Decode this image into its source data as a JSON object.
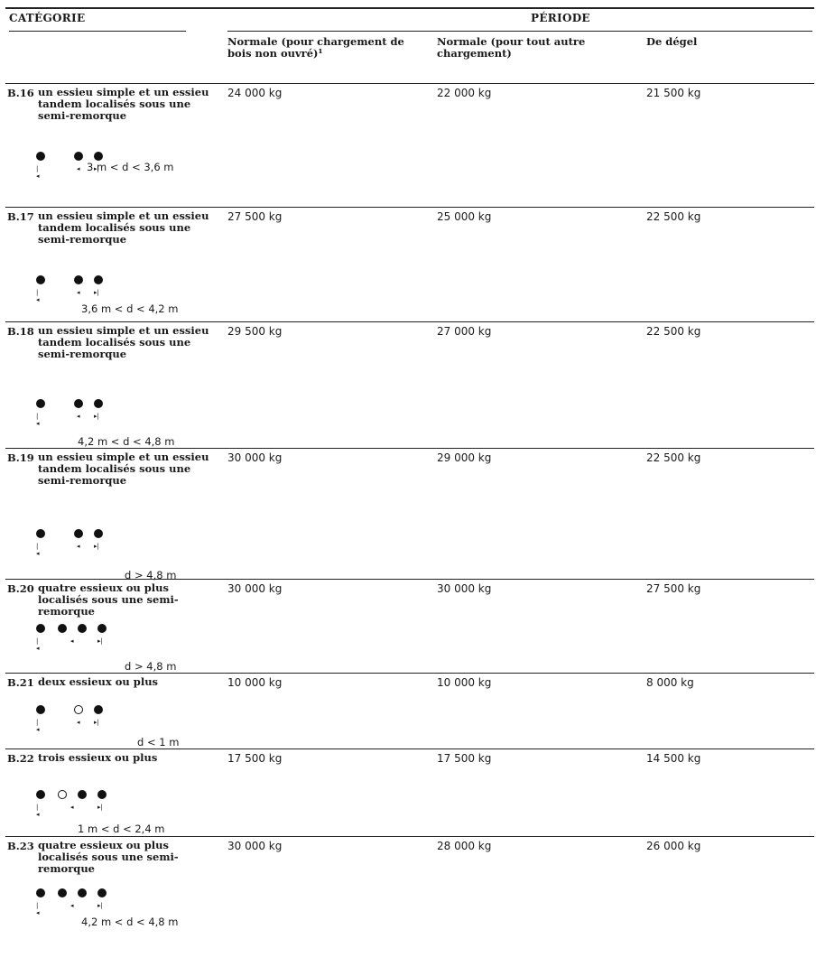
{
  "header": {
    "categorie": "CATÉGORIE",
    "periode": "PÉRIODE",
    "col1": "Normale (pour chargement de bois non ouvré)¹",
    "col2": "Normale (pour tout autre chargement)",
    "col3": "De dégel"
  },
  "rows": [
    {
      "code": "B.16",
      "desc": "un essieu simple et un essieu tandem localisés sous une semi-remorque",
      "axles": [
        "filled",
        "filled",
        "filled"
      ],
      "formula": "3 m < d < 3,6 m",
      "v1": "24 000 kg",
      "v2": "22 000 kg",
      "v3": "21 500 kg"
    },
    {
      "code": "B.17",
      "desc": "un essieu simple et un essieu tandem localisés sous une semi-remorque",
      "axles": [
        "filled",
        "filled",
        "filled"
      ],
      "formula": "3,6 m < d < 4,2 m",
      "v1": "27 500 kg",
      "v2": "25 000 kg",
      "v3": "22 500 kg"
    },
    {
      "code": "B.18",
      "desc": "un essieu simple et un essieu tandem localisés sous une semi-remorque",
      "axles": [
        "filled",
        "filled",
        "filled"
      ],
      "formula": "4,2 m < d < 4,8 m",
      "v1": "29 500 kg",
      "v2": "27 000 kg",
      "v3": "22 500 kg"
    },
    {
      "code": "B.19",
      "desc": "un essieu simple et un essieu tandem localisés sous une semi-remorque",
      "axles": [
        "filled",
        "filled",
        "filled"
      ],
      "formula": "d > 4,8 m",
      "v1": "30 000 kg",
      "v2": "29 000 kg",
      "v3": "22 500 kg"
    },
    {
      "code": "B.20",
      "desc": "quatre essieux ou plus localisés sous une semi-remorque",
      "axles": [
        "filled",
        "filled",
        "filled",
        "filled"
      ],
      "formula": "d > 4,8 m",
      "v1": "30 000 kg",
      "v2": "30 000 kg",
      "v3": "27 500 kg"
    },
    {
      "code": "B.21",
      "desc": "deux essieux ou plus",
      "axles": [
        "filled",
        "open",
        "filled"
      ],
      "formula": "d < 1 m",
      "v1": "10 000 kg",
      "v2": "10 000 kg",
      "v3": "8 000 kg"
    },
    {
      "code": "B.22",
      "desc": "trois essieux ou plus",
      "axles": [
        "filled",
        "open",
        "filled",
        "filled"
      ],
      "formula": "1 m < d < 2,4 m",
      "v1": "17 500 kg",
      "v2": "17 500 kg",
      "v3": "14 500 kg"
    },
    {
      "code": "B.23",
      "desc": "quatre essieux ou plus localisés sous une semi-remorque",
      "axles": [
        "filled",
        "filled",
        "filled",
        "filled"
      ],
      "formula": "4,2 m < d < 4,8 m",
      "v1": "30 000 kg",
      "v2": "28 000 kg",
      "v3": "26 000 kg"
    }
  ]
}
